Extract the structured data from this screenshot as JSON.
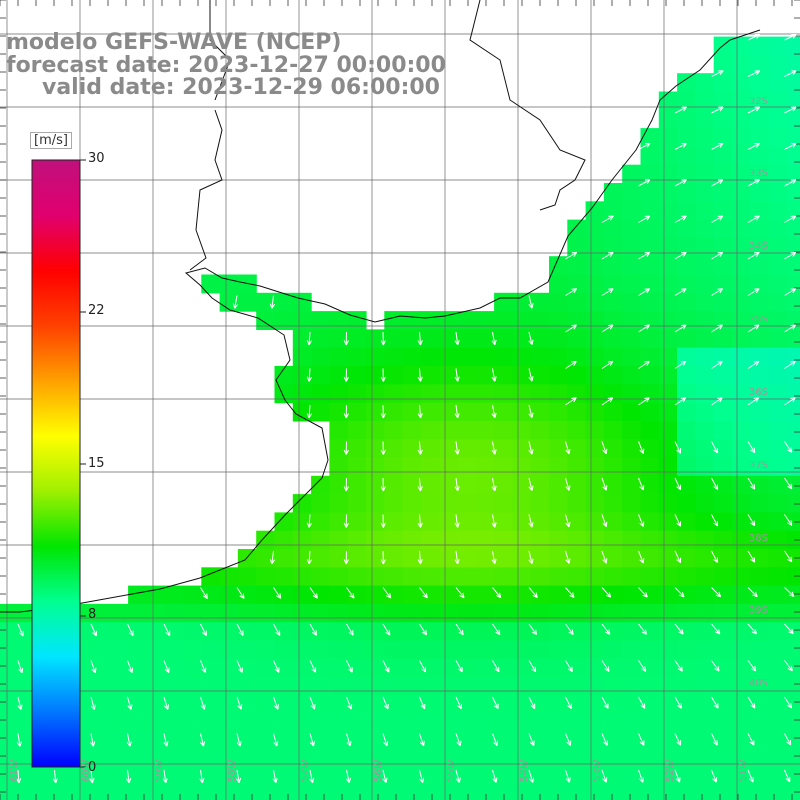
{
  "header": {
    "model": "modelo GEFS-WAVE (NCEP)",
    "forecast": "forecast date: 2023-12-27 00:00:00",
    "valid": "valid date: 2023-12-29 06:00:00"
  },
  "colorbar": {
    "units": "[m/s]",
    "ticks": [
      "30",
      "22",
      "15",
      "8",
      "0"
    ],
    "min": 0,
    "max": 30,
    "colors": [
      "#0000ff",
      "#0078ff",
      "#00e6ff",
      "#00ff90",
      "#00e600",
      "#a0f000",
      "#ffff00",
      "#ffa000",
      "#ff4000",
      "#ff0000",
      "#e0006e",
      "#c0107c"
    ]
  },
  "map": {
    "land_color": "#ffffff",
    "grid": true,
    "lat_labels": [
      "32S",
      "33S",
      "34S",
      "35S",
      "36S",
      "37S",
      "38S",
      "39S",
      "40S"
    ],
    "lon_labels": [
      "61W",
      "60W",
      "59W",
      "58W",
      "57W",
      "56W",
      "55W",
      "54W",
      "53W",
      "52W",
      "51W"
    ]
  }
}
